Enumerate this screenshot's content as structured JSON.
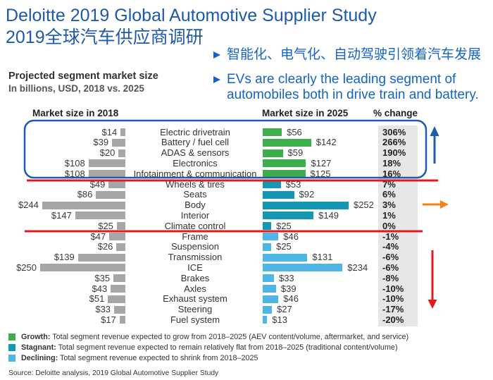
{
  "header": {
    "title": "Deloitte 2019 Global Automotive Supplier Study",
    "subtitle_cn": "2019全球汽车供应商调研"
  },
  "bullets": [
    "智能化、电气化、自动驾驶引领着汽车发展",
    "EVs are clearly the leading segment of automobiles both in drive train and battery."
  ],
  "chart_data": {
    "type": "bar",
    "title": "Projected segment market size",
    "subtitle": "In billions, USD, 2018 vs. 2025",
    "change_label": "% change",
    "value_prefix": "$",
    "change_suffix": "%",
    "categories": [
      "Electric drivetrain",
      "Battery / fuel cell",
      "ADAS & sensors",
      "Electronics",
      "Infotainment & communication",
      "Wheels & tires",
      "Seats",
      "Body",
      "Interior",
      "Climate control",
      "Frame",
      "Suspension",
      "Transmission",
      "ICE",
      "Brakes",
      "Axles",
      "Exhaust system",
      "Steering",
      "Fuel system"
    ],
    "series": [
      {
        "name": "Market size in 2018",
        "values": [
          14,
          39,
          20,
          108,
          108,
          49,
          86,
          244,
          147,
          25,
          47,
          26,
          139,
          250,
          35,
          43,
          51,
          33,
          17
        ],
        "color": "#a6a6a6"
      },
      {
        "name": "Market size in 2025",
        "values": [
          56,
          142,
          59,
          127,
          125,
          53,
          92,
          252,
          149,
          25,
          46,
          25,
          131,
          234,
          33,
          39,
          46,
          27,
          13
        ]
      }
    ],
    "pct_change": [
      306,
      266,
      190,
      18,
      16,
      7,
      6,
      3,
      1,
      0,
      -1,
      -4,
      -6,
      -6,
      -8,
      -10,
      -10,
      -17,
      -20
    ],
    "segment_index": [
      0,
      0,
      0,
      0,
      0,
      1,
      1,
      1,
      1,
      1,
      2,
      2,
      2,
      2,
      2,
      2,
      2,
      2,
      2
    ],
    "legend": [
      {
        "label": "Growth:",
        "text": "Total segment revenue expected to grow from 2018–2025 (AEV content/volume, aftermarket, and service)",
        "color": "#3dae4b"
      },
      {
        "label": "Stagnant:",
        "text": "Total segment revenue expected to remain relatively flat from 2018–2025 (traditional content/volume)",
        "color": "#1397b2"
      },
      {
        "label": "Declining:",
        "text": "Total segment revenue expected to shrink from 2018–2025",
        "color": "#4db6e6"
      }
    ],
    "change_column_bg": "#e6e6e6"
  },
  "source": "Source: Deloitte analysis, 2019 Global Automotive Supplier Study",
  "annotation_colors": {
    "highlight_box": "#1c5eab",
    "divider_lines": "#e3191c",
    "up_arrow": "#1c5eab",
    "right_arrow": "#f5821f",
    "down_arrow": "#e3191c"
  }
}
